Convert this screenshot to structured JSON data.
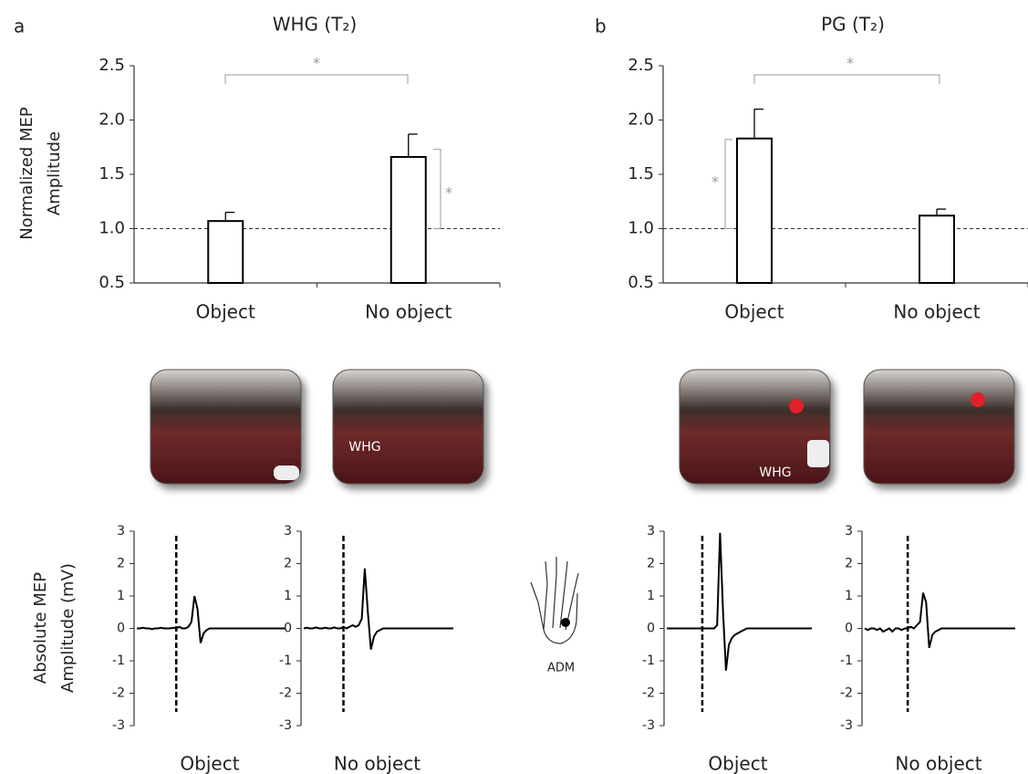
{
  "panel_labels": [
    "a",
    "b"
  ],
  "photo_labels": [
    "WHG",
    "WHG"
  ],
  "muscle_label": "ADM",
  "chart_data": [
    {
      "type": "bar",
      "title": "WHG (T₂)",
      "ylabel": [
        "Normalized MEP",
        "Amplitude"
      ],
      "categories": [
        "Object",
        "No object"
      ],
      "values": [
        1.07,
        1.66
      ],
      "errors": [
        0.08,
        0.21
      ],
      "ylim": [
        0.5,
        2.5
      ],
      "yticks": [
        0.5,
        {
          "value": 1,
          "label": "1.0"
        },
        1.5,
        {
          "value": 2,
          "label": "2.0"
        },
        2.5
      ],
      "reference_line": 1,
      "significance": [
        "*",
        "*"
      ],
      "color": "#ffffff",
      "edge_color": "#000000"
    },
    {
      "type": "bar",
      "title": "PG (T₂)",
      "categories": [
        "Object",
        "No object"
      ],
      "values": [
        1.83,
        1.12
      ],
      "errors": [
        0.27,
        0.06
      ],
      "ylim": [
        0.5,
        2.5
      ],
      "yticks": [
        0.5,
        {
          "value": 1,
          "label": "1.0"
        },
        1.5,
        {
          "value": 2,
          "label": "2.0"
        },
        2.5
      ],
      "reference_line": 1,
      "significance": [
        "*",
        "*"
      ],
      "color": "#ffffff",
      "edge_color": "#000000"
    },
    {
      "type": "line",
      "xlabel": "Object",
      "ylabel": [
        "Absolute MEP",
        "Amplitude (mV)"
      ],
      "event_index": 13,
      "values": [
        0,
        0,
        0.02,
        0,
        0,
        -0.02,
        0,
        0,
        0.02,
        0,
        0,
        0,
        0.02,
        0,
        0.05,
        0,
        0,
        0.05,
        0.2,
        1.0,
        0.6,
        -0.45,
        -0.15,
        -0.05,
        0,
        0,
        0,
        0,
        0,
        0,
        0,
        0,
        0,
        0,
        0,
        0,
        0,
        0,
        0,
        0,
        0,
        0,
        0,
        0,
        0,
        0,
        0,
        0,
        0,
        0
      ],
      "ylim": [
        -3,
        3
      ],
      "yticks": [
        -3,
        -2,
        -1,
        0,
        1,
        2,
        3
      ],
      "color": "#000000"
    },
    {
      "type": "line",
      "xlabel": "No object",
      "event_index": 13,
      "values": [
        0,
        0.02,
        0,
        0,
        0.03,
        0,
        0,
        0.02,
        0,
        0,
        0.03,
        0,
        0,
        0.05,
        0,
        0.05,
        0.1,
        0.05,
        0.1,
        0.3,
        1.85,
        0.5,
        -0.65,
        -0.25,
        -0.1,
        -0.05,
        0,
        0,
        0,
        0,
        0,
        0,
        0,
        0,
        0,
        0,
        0,
        0,
        0,
        0,
        0,
        0,
        0,
        0,
        0,
        0,
        0,
        0,
        0,
        0
      ],
      "ylim": [
        -3,
        3
      ],
      "yticks": [
        -3,
        -2,
        -1,
        0,
        1,
        2,
        3
      ],
      "color": "#000000"
    },
    {
      "type": "line",
      "xlabel": "Object",
      "event_index": 12,
      "values": [
        0,
        0,
        0,
        0,
        0,
        0,
        0,
        0,
        0,
        0,
        0,
        0,
        0,
        0,
        0,
        0,
        0,
        0.1,
        2.95,
        0.5,
        -1.3,
        -0.5,
        -0.3,
        -0.2,
        -0.15,
        -0.1,
        -0.05,
        0,
        0,
        0,
        0,
        0,
        0,
        0,
        0,
        0,
        0,
        0,
        0,
        0,
        0,
        0,
        0,
        0,
        0,
        0,
        0,
        0,
        0,
        0
      ],
      "ylim": [
        -3,
        3
      ],
      "yticks": [
        -3,
        -2,
        -1,
        0,
        1,
        2,
        3
      ],
      "color": "#000000"
    },
    {
      "type": "line",
      "xlabel": "No object",
      "event_index": 14,
      "values": [
        0,
        -0.05,
        0,
        0,
        -0.05,
        0,
        -0.1,
        -0.05,
        0,
        -0.1,
        0,
        0,
        -0.05,
        0,
        0,
        0.05,
        0,
        0.1,
        0.2,
        1.1,
        0.8,
        -0.6,
        -0.2,
        -0.1,
        -0.05,
        0,
        0,
        0,
        0,
        0,
        0,
        0,
        0,
        0,
        0,
        0,
        0,
        0,
        0,
        0,
        0,
        0,
        0,
        0,
        0,
        0,
        0,
        0,
        0,
        0
      ],
      "ylim": [
        -3,
        3
      ],
      "yticks": [
        -3,
        -2,
        -1,
        0,
        1,
        2,
        3
      ],
      "color": "#000000"
    }
  ]
}
